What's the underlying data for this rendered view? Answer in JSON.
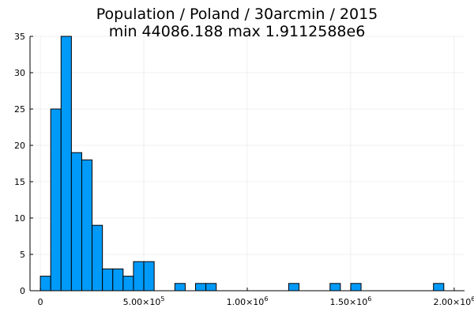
{
  "chart_data": {
    "type": "bar",
    "title": "Population / Poland / 30arcmin / 2015",
    "subtitle": "min 44086.188  max 1.9112588e6",
    "xlabel": "",
    "ylabel": "",
    "xlim": [
      -50000,
      2050000
    ],
    "ylim": [
      0,
      35
    ],
    "grid": true,
    "legend": "none",
    "bar_color": "#009af9",
    "bin_width": 50000,
    "bins": [
      {
        "x0": 0,
        "x1": 50000,
        "count": 2
      },
      {
        "x0": 50000,
        "x1": 100000,
        "count": 25
      },
      {
        "x0": 100000,
        "x1": 150000,
        "count": 35
      },
      {
        "x0": 150000,
        "x1": 200000,
        "count": 19
      },
      {
        "x0": 200000,
        "x1": 250000,
        "count": 18
      },
      {
        "x0": 250000,
        "x1": 300000,
        "count": 9
      },
      {
        "x0": 300000,
        "x1": 350000,
        "count": 3
      },
      {
        "x0": 350000,
        "x1": 400000,
        "count": 3
      },
      {
        "x0": 400000,
        "x1": 450000,
        "count": 2
      },
      {
        "x0": 450000,
        "x1": 500000,
        "count": 4
      },
      {
        "x0": 500000,
        "x1": 550000,
        "count": 4
      },
      {
        "x0": 650000,
        "x1": 700000,
        "count": 1
      },
      {
        "x0": 750000,
        "x1": 800000,
        "count": 1
      },
      {
        "x0": 800000,
        "x1": 850000,
        "count": 1
      },
      {
        "x0": 1200000,
        "x1": 1250000,
        "count": 1
      },
      {
        "x0": 1400000,
        "x1": 1450000,
        "count": 1
      },
      {
        "x0": 1500000,
        "x1": 1550000,
        "count": 1
      },
      {
        "x0": 1900000,
        "x1": 1950000,
        "count": 1
      }
    ],
    "x_ticks": [
      {
        "value": 0,
        "label": "0",
        "sup": ""
      },
      {
        "value": 500000,
        "label": "5.00×10",
        "sup": "5"
      },
      {
        "value": 1000000,
        "label": "1.00×10",
        "sup": "6"
      },
      {
        "value": 1500000,
        "label": "1.50×10",
        "sup": "6"
      },
      {
        "value": 2000000,
        "label": "2.00×10",
        "sup": "6"
      }
    ],
    "y_ticks": [
      {
        "value": 0,
        "label": "0"
      },
      {
        "value": 5,
        "label": "5"
      },
      {
        "value": 10,
        "label": "10"
      },
      {
        "value": 15,
        "label": "15"
      },
      {
        "value": 20,
        "label": "20"
      },
      {
        "value": 25,
        "label": "25"
      },
      {
        "value": 30,
        "label": "30"
      },
      {
        "value": 35,
        "label": "35"
      }
    ]
  }
}
